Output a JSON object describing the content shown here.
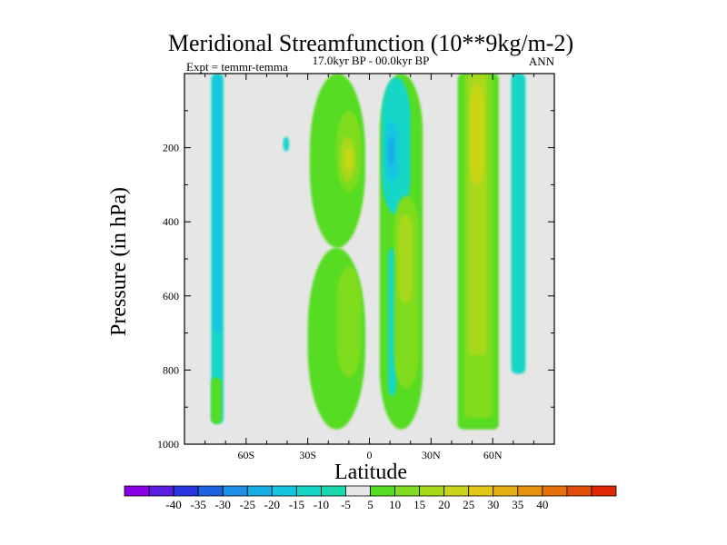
{
  "chart_data": {
    "type": "heatmap",
    "title": "Meridional Streamfunction (10**9kg/m-2)",
    "subtitle": "17.0kyr BP - 00.0kyr BP",
    "left_label": "Expt = temmr-temma",
    "right_label": "ANN",
    "xlabel": "Latitude",
    "ylabel": "Pressure (in hPa)",
    "x_range": [
      -90,
      90
    ],
    "y_range": [
      0,
      1000
    ],
    "y_inverted": true,
    "x_ticks": [
      {
        "value": -60,
        "label": "60S"
      },
      {
        "value": -30,
        "label": "30S"
      },
      {
        "value": 0,
        "label": "0"
      },
      {
        "value": 30,
        "label": "30N"
      },
      {
        "value": 60,
        "label": "60N"
      }
    ],
    "y_ticks": [
      {
        "value": 200,
        "label": "200"
      },
      {
        "value": 400,
        "label": "400"
      },
      {
        "value": 600,
        "label": "600"
      },
      {
        "value": 800,
        "label": "800"
      },
      {
        "value": 1000,
        "label": "1000"
      }
    ],
    "background_color": "#e6e6e6",
    "colorbar": {
      "colors": [
        "#8a00e6",
        "#5a1fe0",
        "#2a35e0",
        "#1f63e0",
        "#1e8ee6",
        "#17aee6",
        "#14c6e0",
        "#15d6c8",
        "#1ad8ad",
        "#e6e6e6",
        "#56dc22",
        "#7fdc1e",
        "#a8d81a",
        "#c8d617",
        "#e0c814",
        "#e6b012",
        "#e6910f",
        "#e6700c",
        "#e24e0a",
        "#e02808"
      ],
      "labels": [
        "-40",
        "-35",
        "-30",
        "-25",
        "-20",
        "-15",
        "-10",
        "-5",
        "5",
        "10",
        "15",
        "20",
        "25",
        "30",
        "35",
        "40"
      ]
    },
    "regions": [
      {
        "lat": [
          -77,
          -71
        ],
        "p": [
          0,
          945
        ],
        "value": -7,
        "shape": "column"
      },
      {
        "lat": [
          -76,
          -72
        ],
        "p": [
          5,
          700
        ],
        "value": -12,
        "shape": "column"
      },
      {
        "lat": [
          -77,
          -72
        ],
        "p": [
          820,
          945
        ],
        "value": 7,
        "shape": "column"
      },
      {
        "lat": [
          -42,
          -39
        ],
        "p": [
          170,
          210
        ],
        "value": -7,
        "shape": "blob"
      },
      {
        "lat": [
          -29,
          -2
        ],
        "p": [
          0,
          470
        ],
        "value": 7,
        "shape": "blob"
      },
      {
        "lat": [
          -16,
          -4
        ],
        "p": [
          100,
          320
        ],
        "value": 12,
        "shape": "blob"
      },
      {
        "lat": [
          -14,
          -7
        ],
        "p": [
          170,
          290
        ],
        "value": 17,
        "shape": "blob"
      },
      {
        "lat": [
          -12,
          -8
        ],
        "p": [
          200,
          265
        ],
        "value": 22,
        "shape": "blob"
      },
      {
        "lat": [
          -30,
          -2
        ],
        "p": [
          470,
          960
        ],
        "value": 7,
        "shape": "blob"
      },
      {
        "lat": [
          -16,
          -4
        ],
        "p": [
          520,
          820
        ],
        "value": 12,
        "shape": "blob"
      },
      {
        "lat": [
          5,
          26
        ],
        "p": [
          0,
          960
        ],
        "value": 7,
        "shape": "blob"
      },
      {
        "lat": [
          6,
          20
        ],
        "p": [
          10,
          380
        ],
        "value": -7,
        "shape": "blob"
      },
      {
        "lat": [
          8,
          14
        ],
        "p": [
          130,
          290
        ],
        "value": -12,
        "shape": "blob"
      },
      {
        "lat": [
          9,
          12
        ],
        "p": [
          170,
          250
        ],
        "value": -17,
        "shape": "blob"
      },
      {
        "lat": [
          9,
          13
        ],
        "p": [
          470,
          870
        ],
        "value": -7,
        "shape": "blob"
      },
      {
        "lat": [
          12,
          24
        ],
        "p": [
          330,
          850
        ],
        "value": 12,
        "shape": "blob"
      },
      {
        "lat": [
          14,
          21
        ],
        "p": [
          380,
          620
        ],
        "value": 17,
        "shape": "blob"
      },
      {
        "lat": [
          43,
          63
        ],
        "p": [
          0,
          960
        ],
        "value": 7,
        "shape": "column"
      },
      {
        "lat": [
          46,
          60
        ],
        "p": [
          0,
          930
        ],
        "value": 12,
        "shape": "column"
      },
      {
        "lat": [
          48,
          57
        ],
        "p": [
          0,
          760
        ],
        "value": 17,
        "shape": "column"
      },
      {
        "lat": [
          49,
          56
        ],
        "p": [
          30,
          300
        ],
        "value": 22,
        "shape": "blob"
      },
      {
        "lat": [
          69,
          76
        ],
        "p": [
          0,
          810
        ],
        "value": -7,
        "shape": "column"
      }
    ]
  }
}
